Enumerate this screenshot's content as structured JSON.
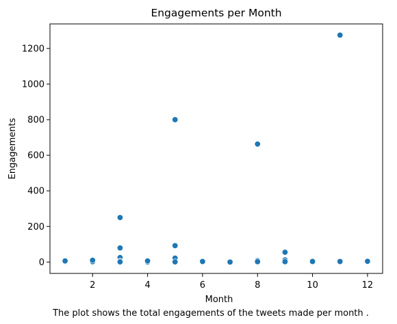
{
  "chart_data": {
    "type": "scatter",
    "title": "Engagements per Month",
    "xlabel": "Month",
    "ylabel": "Engagements",
    "caption": "The plot shows the total engagements of the tweets made per month .",
    "xlim": [
      0.45,
      12.55
    ],
    "ylim": [
      -64,
      1338
    ],
    "xticks": [
      2,
      4,
      6,
      8,
      10,
      12
    ],
    "yticks": [
      0,
      200,
      400,
      600,
      800,
      1000,
      1200
    ],
    "grid": false,
    "legend": "none",
    "marker_color": "#1f77b4",
    "marker_edge_color": "#ffffff",
    "points": [
      {
        "x": 1,
        "y": 3
      },
      {
        "x": 1,
        "y": 6
      },
      {
        "x": 2,
        "y": 0
      },
      {
        "x": 2,
        "y": 2
      },
      {
        "x": 2,
        "y": 10
      },
      {
        "x": 3,
        "y": 250
      },
      {
        "x": 3,
        "y": 79
      },
      {
        "x": 3,
        "y": 25
      },
      {
        "x": 3,
        "y": 5
      },
      {
        "x": 3,
        "y": 1
      },
      {
        "x": 4,
        "y": 0
      },
      {
        "x": 4,
        "y": 6
      },
      {
        "x": 5,
        "y": 800
      },
      {
        "x": 5,
        "y": 92
      },
      {
        "x": 5,
        "y": 22
      },
      {
        "x": 5,
        "y": 1
      },
      {
        "x": 6,
        "y": 3
      },
      {
        "x": 7,
        "y": 0
      },
      {
        "x": 8,
        "y": 663
      },
      {
        "x": 8,
        "y": 8
      },
      {
        "x": 8,
        "y": 2
      },
      {
        "x": 9,
        "y": 55
      },
      {
        "x": 9,
        "y": 12
      },
      {
        "x": 9,
        "y": 2
      },
      {
        "x": 10,
        "y": 6
      },
      {
        "x": 10,
        "y": 3
      },
      {
        "x": 11,
        "y": 1275
      },
      {
        "x": 11,
        "y": 3
      },
      {
        "x": 12,
        "y": 4
      }
    ]
  }
}
